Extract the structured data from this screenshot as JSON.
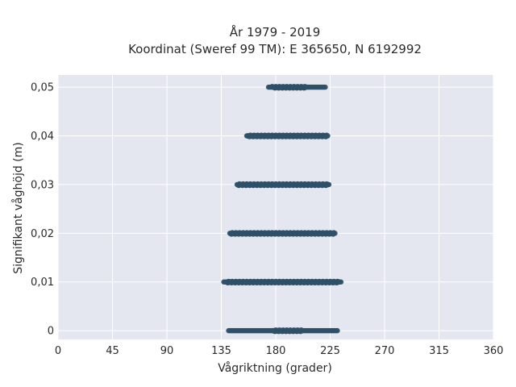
{
  "chart_data": {
    "type": "scatter",
    "title": "År 1979 - 2019",
    "subtitle": "Koordinat (Sweref 99 TM): E 365650, N 6192992",
    "xlabel": "Vågriktning (grader)",
    "ylabel": "Signifikant våghöjd (m)",
    "xlim": [
      0,
      360
    ],
    "ylim": [
      -0.0018,
      0.0525
    ],
    "x_ticks": [
      "0",
      "45",
      "90",
      "135",
      "180",
      "225",
      "270",
      "315",
      "360"
    ],
    "x_tick_values": [
      0,
      45,
      90,
      135,
      180,
      225,
      270,
      315,
      360
    ],
    "y_ticks": [
      "0",
      "0,01",
      "0,02",
      "0,03",
      "0,04",
      "0,05"
    ],
    "y_tick_values": [
      0,
      0.01,
      0.02,
      0.03,
      0.04,
      0.05
    ],
    "grid": true,
    "background": "#e5e7f0",
    "marker_color": "#2e5068",
    "series": [
      {
        "y": 0.0,
        "x_min": 141,
        "x_max": 231,
        "dense_x_min": 178,
        "dense_x_max": 202
      },
      {
        "y": 0.01,
        "x_min": 137,
        "x_max": 234,
        "dense_x_min": 140,
        "dense_x_max": 232
      },
      {
        "y": 0.02,
        "x_min": 142,
        "x_max": 229,
        "dense_x_min": 143,
        "dense_x_max": 228
      },
      {
        "y": 0.03,
        "x_min": 148,
        "x_max": 224,
        "dense_x_min": 149,
        "dense_x_max": 223
      },
      {
        "y": 0.04,
        "x_min": 156,
        "x_max": 223,
        "dense_x_min": 157,
        "dense_x_max": 222
      },
      {
        "y": 0.05,
        "x_min": 174,
        "x_max": 221,
        "dense_x_min": 177,
        "dense_x_max": 205
      }
    ]
  }
}
